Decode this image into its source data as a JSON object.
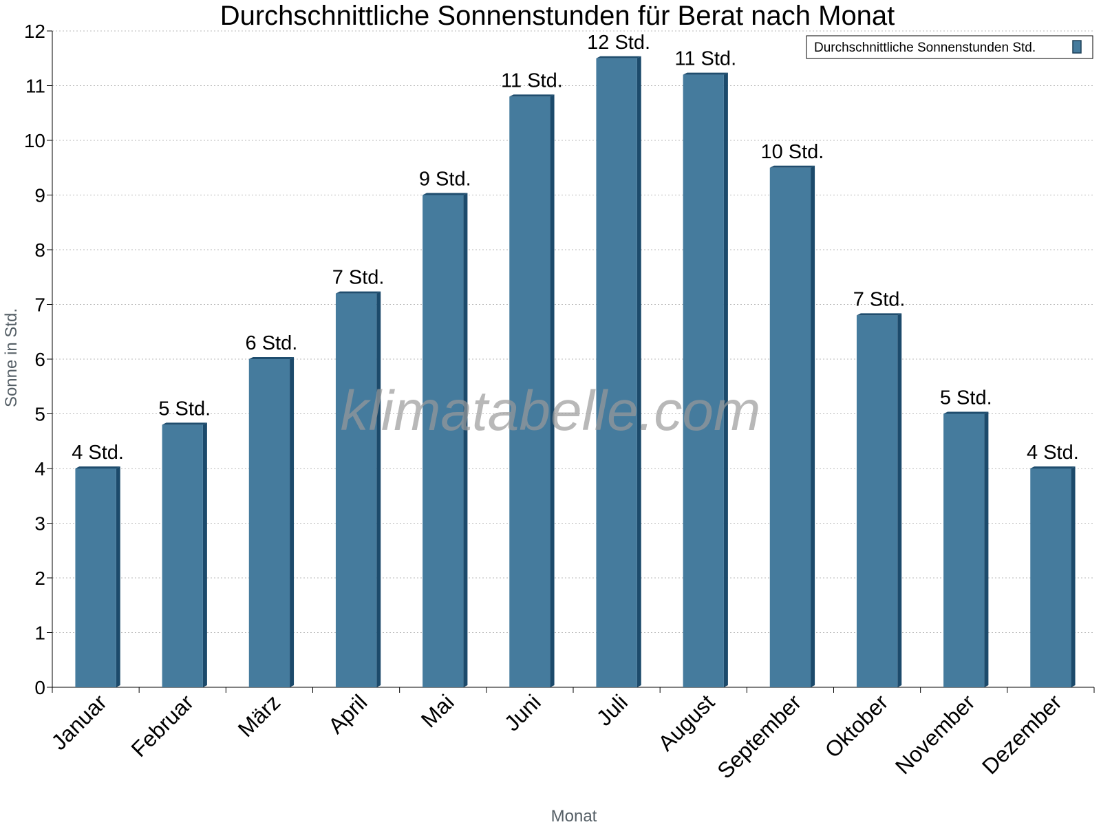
{
  "chart_data": {
    "type": "bar",
    "title": "Durchschnittliche Sonnenstunden für Berat nach Monat",
    "xlabel": "Monat",
    "ylabel": "Sonne in Std.",
    "ylim": [
      0,
      12
    ],
    "yticks": [
      "0",
      "1",
      "2",
      "3",
      "4",
      "5",
      "6",
      "7",
      "8",
      "9",
      "10",
      "11",
      "12"
    ],
    "grid": true,
    "legend_position": "top-right",
    "categories": [
      "Januar",
      "Februar",
      "März",
      "April",
      "Mai",
      "Juni",
      "Juli",
      "August",
      "September",
      "Oktober",
      "November",
      "Dezember"
    ],
    "series": [
      {
        "name": "Durchschnittliche Sonnenstunden Std.",
        "color": "#457b9d",
        "values": [
          4.0,
          4.8,
          6.0,
          7.2,
          9.0,
          10.8,
          11.5,
          11.2,
          9.5,
          6.8,
          5.0,
          4.0
        ],
        "labels": [
          "4 Std.",
          "5 Std.",
          "6 Std.",
          "7 Std.",
          "9 Std.",
          "11 Std.",
          "12 Std.",
          "11 Std.",
          "10 Std.",
          "7 Std.",
          "5 Std.",
          "4 Std."
        ]
      }
    ]
  },
  "watermark": "klimatabelle.com"
}
